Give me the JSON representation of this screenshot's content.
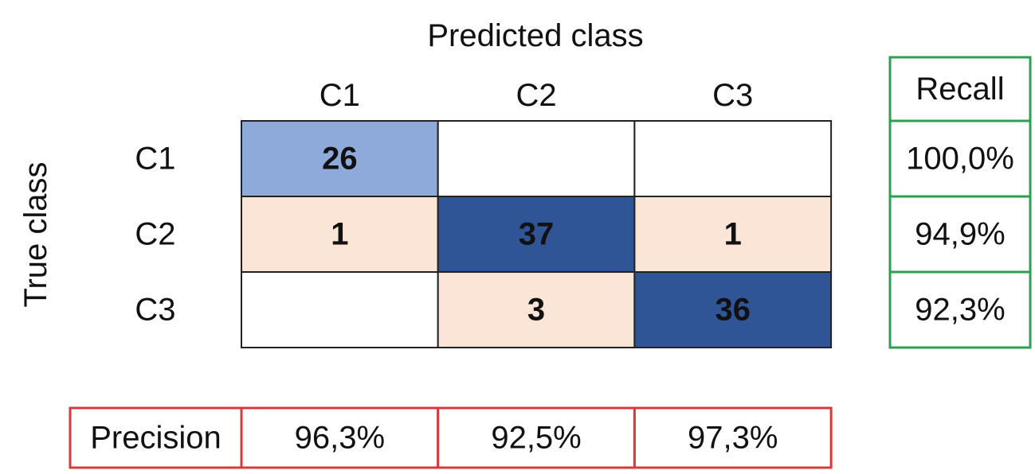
{
  "title": "Predicted class",
  "row_axis_label": "True class",
  "columns": [
    "C1",
    "C2",
    "C3"
  ],
  "recall_header": "Recall",
  "rows": [
    {
      "label": "C1",
      "cells": [
        26,
        null,
        null
      ],
      "fills": [
        "#8eaadb",
        "#ffffff",
        "#ffffff"
      ],
      "text_fills": [
        "#111111",
        "#111111",
        "#111111"
      ],
      "recall": "100,0%"
    },
    {
      "label": "C2",
      "cells": [
        1,
        37,
        1
      ],
      "fills": [
        "#fbe5d6",
        "#2f5597",
        "#fbe5d6"
      ],
      "text_fills": [
        "#111111",
        "#ffffff",
        "#111111"
      ],
      "recall": "94,9%"
    },
    {
      "label": "C3",
      "cells": [
        null,
        3,
        36
      ],
      "fills": [
        "#ffffff",
        "#fbe5d6",
        "#2f5597"
      ],
      "text_fills": [
        "#111111",
        "#111111",
        "#ffffff"
      ],
      "recall": "92,3%"
    }
  ],
  "precision": {
    "label": "Precision",
    "values": [
      "96,3%",
      "92,5%",
      "97,3%"
    ]
  }
}
